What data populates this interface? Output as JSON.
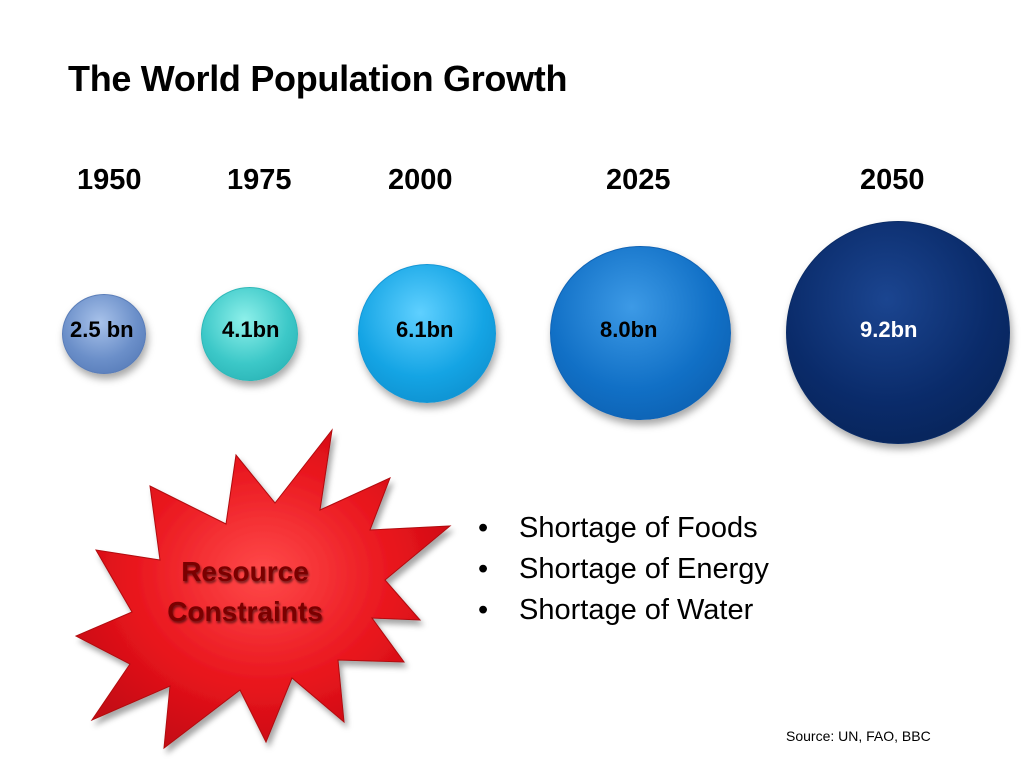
{
  "title": "The World Population Growth",
  "timeline": [
    {
      "year": "1950",
      "population": "2.5 bn",
      "color": "#6b8fc9"
    },
    {
      "year": "1975",
      "population": "4.1bn",
      "color": "#3cc8c8"
    },
    {
      "year": "2000",
      "population": "6.1bn",
      "color": "#14a4e4"
    },
    {
      "year": "2025",
      "population": "8.0bn",
      "color": "#1170c6"
    },
    {
      "year": "2050",
      "population": "9.2bn",
      "color": "#0a2b6a"
    }
  ],
  "callout": {
    "line1": "Resource",
    "line2": "Constraints",
    "color": "#e8141c"
  },
  "bullets": [
    "Shortage of Foods",
    "Shortage of Energy",
    "Shortage of Water"
  ],
  "bullet_marker": "•",
  "source": "Source: UN, FAO, BBC"
}
